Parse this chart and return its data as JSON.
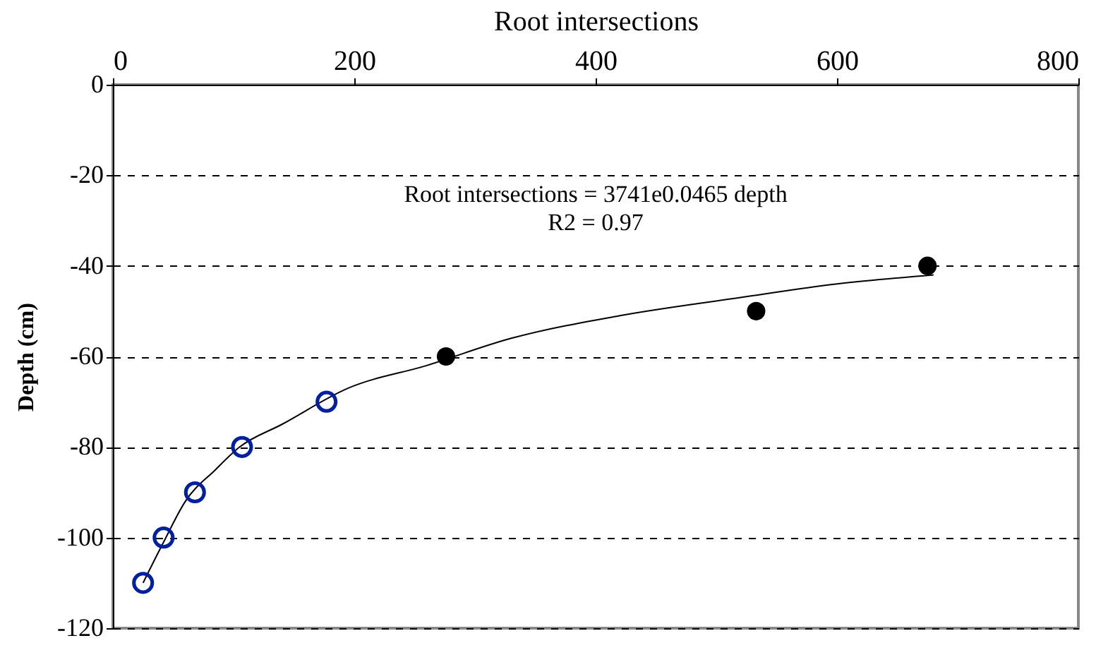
{
  "chart_data": {
    "type": "scatter",
    "xlabel": "Root intersections",
    "ylabel": "Depth (cm)",
    "xlim": [
      0,
      800
    ],
    "xticks": [
      0,
      200,
      400,
      600,
      800
    ],
    "ylim": [
      -120,
      0
    ],
    "yticks": [
      0,
      -20,
      -40,
      -60,
      -80,
      -100,
      -120
    ],
    "grid": "y",
    "annotations": [
      "Root intersections = 3741e0.0465 depth",
      "R2 = 0.97"
    ],
    "series": [
      {
        "type": "line",
        "color": "#000000",
        "marker": "none",
        "x": [
          25,
          42,
          60,
          85,
          105,
          140,
          195,
          260,
          330,
          420,
          520,
          600,
          680
        ],
        "values": [
          -110,
          -101,
          -92,
          -85,
          -80,
          -75,
          -67,
          -62,
          -56,
          -51,
          -47,
          -44,
          -42
        ]
      },
      {
        "marker": "circle",
        "color": "#00209f",
        "x": [
          25,
          42,
          68,
          107,
          177
        ],
        "values": [
          -110,
          -100,
          -90,
          -80,
          -70
        ]
      },
      {
        "marker": "circle",
        "color": "#000000",
        "x": [
          276,
          533,
          675
        ],
        "values": [
          -60,
          -50,
          -40
        ]
      }
    ]
  }
}
